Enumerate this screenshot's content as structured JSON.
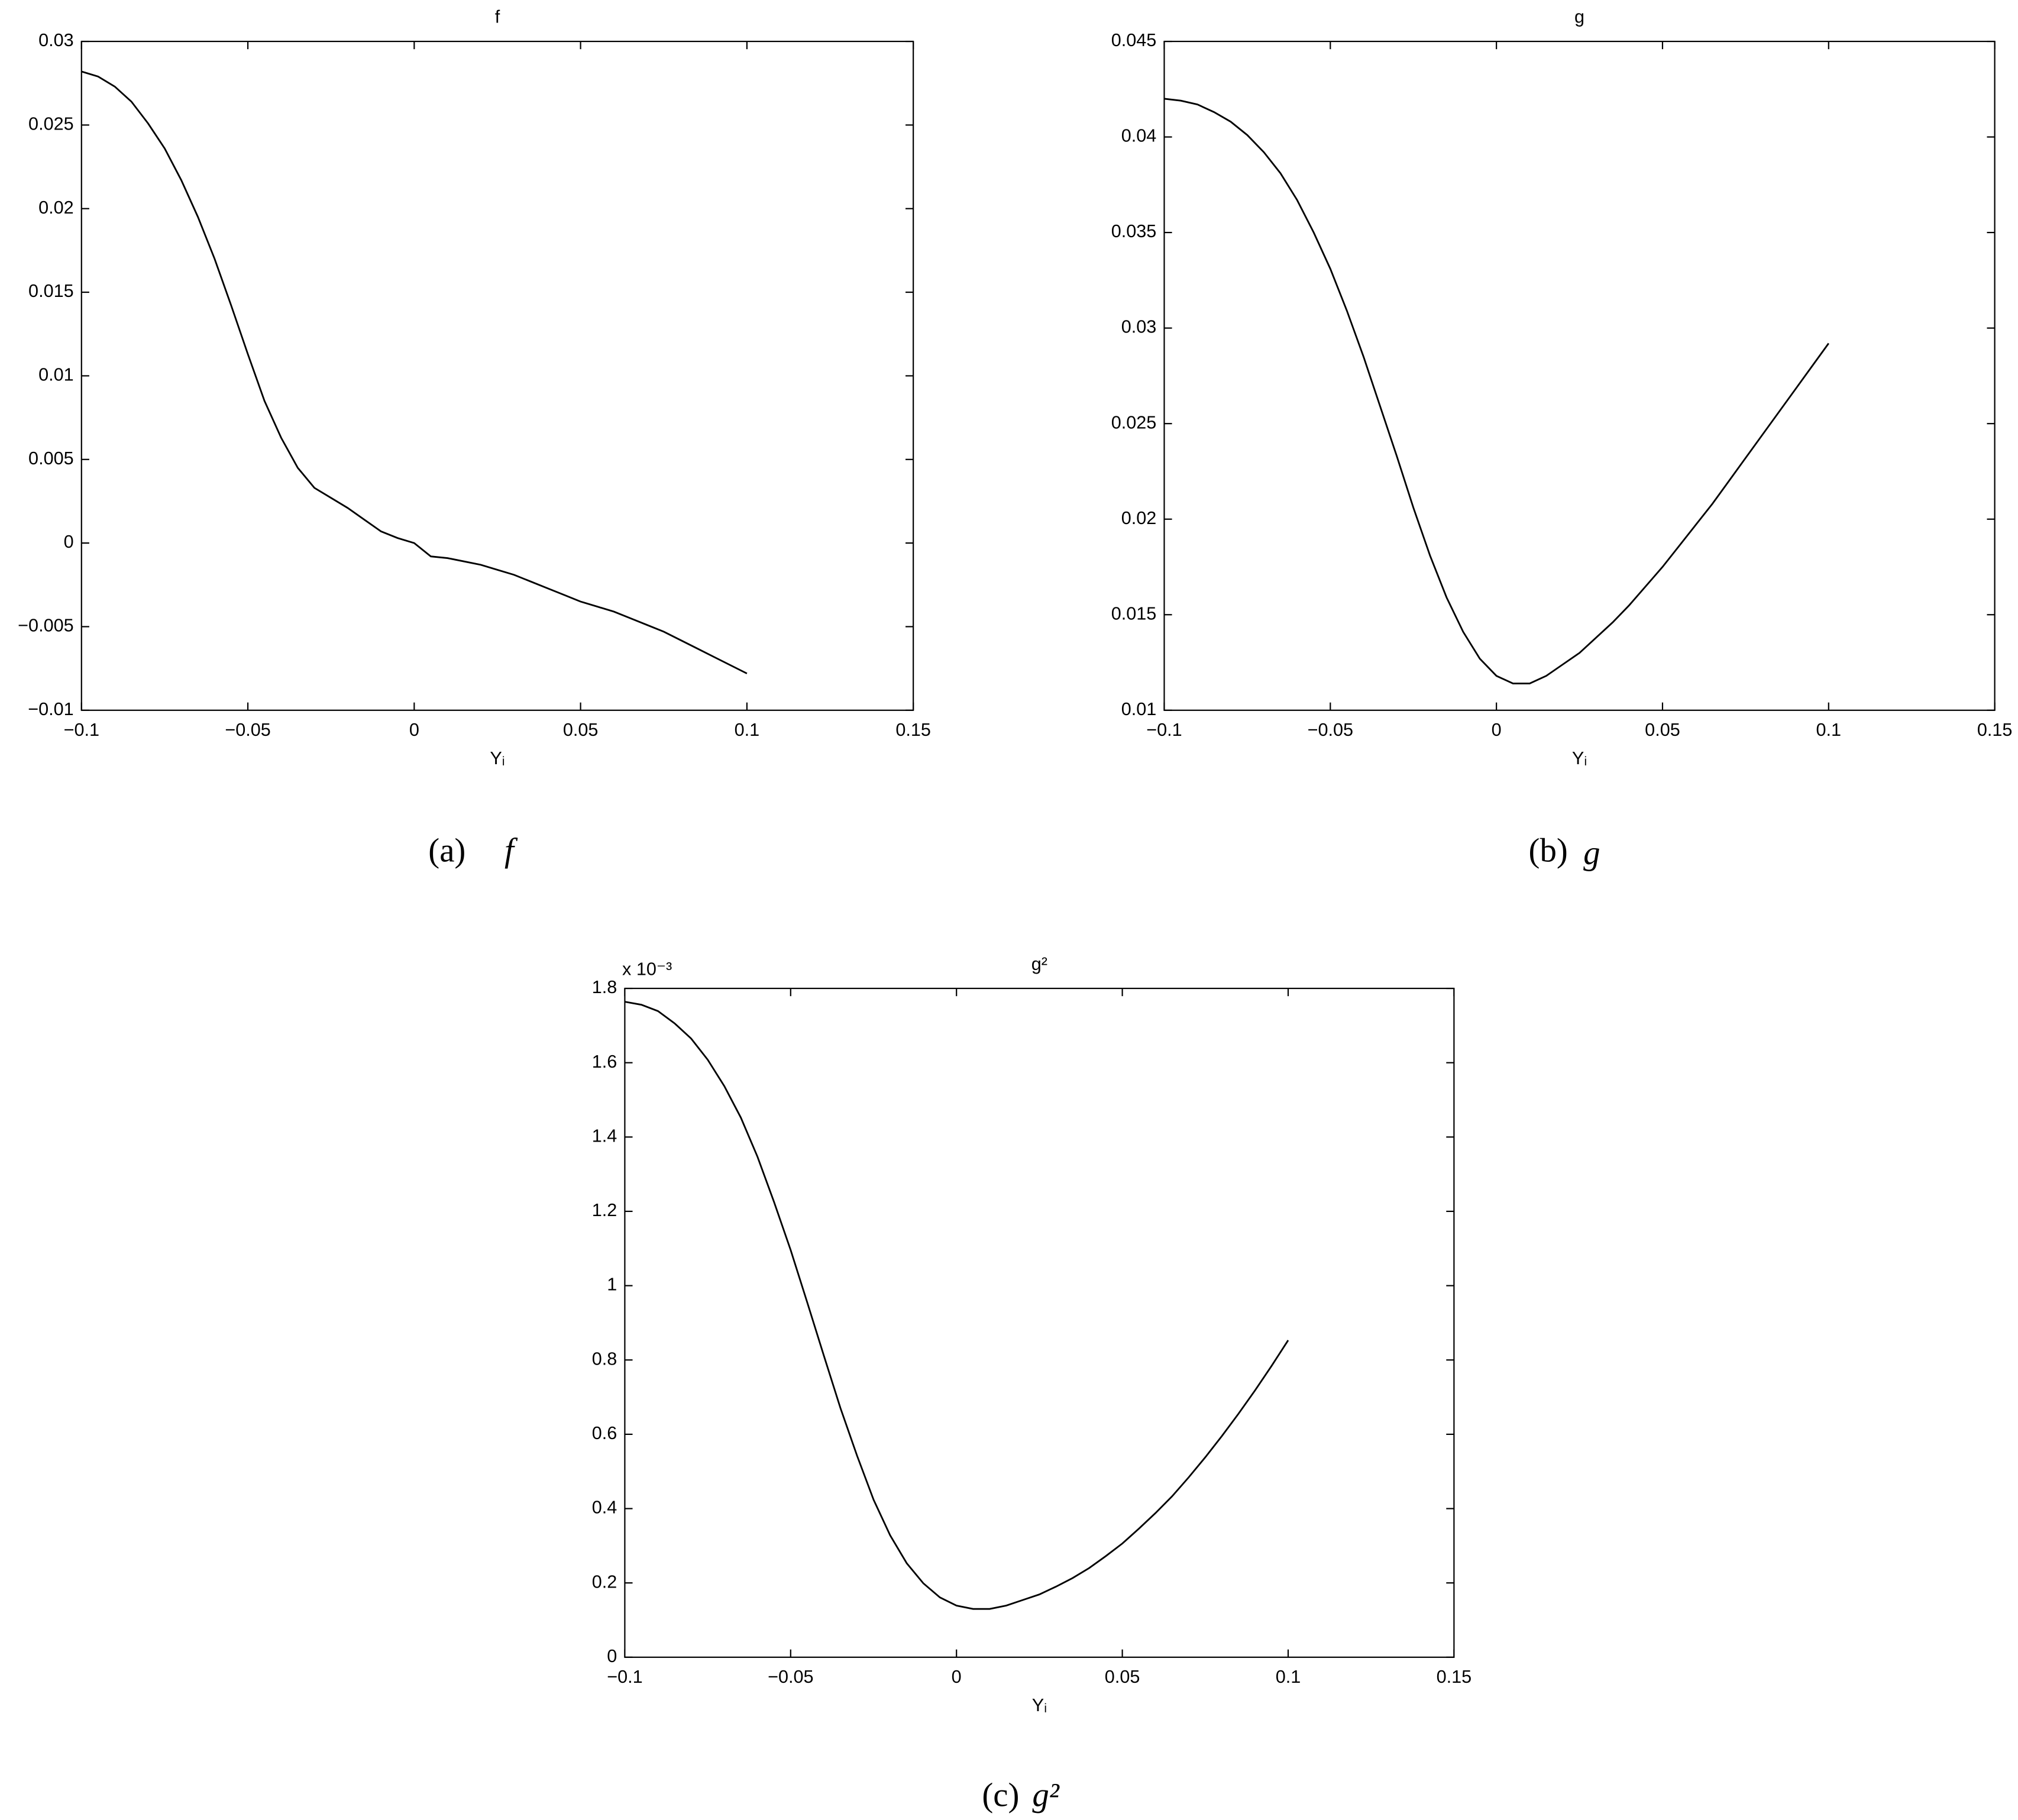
{
  "chart_data": [
    {
      "type": "line",
      "title": "f",
      "x_label": "Yᵢ",
      "caption": {
        "label": "(a)",
        "symbol": "f"
      },
      "color": "#000000",
      "x": [
        -0.1,
        -0.095,
        -0.09,
        -0.085,
        -0.08,
        -0.075,
        -0.07,
        -0.065,
        -0.06,
        -0.055,
        -0.05,
        -0.045,
        -0.04,
        -0.035,
        -0.03,
        -0.025,
        -0.02,
        -0.015,
        -0.01,
        -0.005,
        0,
        0.005,
        0.01,
        0.015,
        0.02,
        0.025,
        0.03,
        0.035,
        0.04,
        0.045,
        0.05,
        0.055,
        0.06,
        0.065,
        0.07,
        0.075,
        0.08,
        0.085,
        0.09,
        0.095,
        0.1
      ],
      "values": [
        0.0282,
        0.0279,
        0.0273,
        0.0264,
        0.0251,
        0.0236,
        0.0217,
        0.0195,
        0.017,
        0.0142,
        0.0113,
        0.0085,
        0.0063,
        0.0045,
        0.0033,
        0.0027,
        0.0021,
        0.0014,
        0.0007,
        0.0003,
        0,
        -0.0008,
        -0.0009,
        -0.0011,
        -0.0013,
        -0.0016,
        -0.0019,
        -0.0023,
        -0.0027,
        -0.0031,
        -0.0035,
        -0.0038,
        -0.0041,
        -0.0045,
        -0.0049,
        -0.0053,
        -0.0058,
        -0.0063,
        -0.0068,
        -0.0073,
        -0.0078
      ],
      "xlim": [
        -0.1,
        0.15
      ],
      "xticks": [
        {
          "value": -0.1,
          "label": "−0.1"
        },
        {
          "value": -0.05,
          "label": "−0.05"
        },
        0,
        0.05,
        0.1,
        0.15
      ],
      "ylim": [
        -0.01,
        0.03
      ],
      "yticks": [
        {
          "value": -0.01,
          "label": "−0.01"
        },
        {
          "value": -0.005,
          "label": "−0.005"
        },
        0,
        0.005,
        0.01,
        0.015,
        0.02,
        0.025,
        0.03
      ]
    },
    {
      "type": "line",
      "title": "g",
      "x_label": "Yᵢ",
      "caption": {
        "label": "(b)",
        "symbol": "g"
      },
      "color": "#000000",
      "x": [
        -0.1,
        -0.095,
        -0.09,
        -0.085,
        -0.08,
        -0.075,
        -0.07,
        -0.065,
        -0.06,
        -0.055,
        -0.05,
        -0.045,
        -0.04,
        -0.035,
        -0.03,
        -0.025,
        -0.02,
        -0.015,
        -0.01,
        -0.005,
        0,
        0.005,
        0.01,
        0.015,
        0.02,
        0.025,
        0.03,
        0.035,
        0.04,
        0.045,
        0.05,
        0.055,
        0.06,
        0.065,
        0.07,
        0.075,
        0.08,
        0.085,
        0.09,
        0.095,
        0.1
      ],
      "values": [
        0.042,
        0.0419,
        0.0417,
        0.0413,
        0.0408,
        0.0401,
        0.0392,
        0.0381,
        0.0367,
        0.035,
        0.0331,
        0.0309,
        0.0285,
        0.0259,
        0.0233,
        0.0206,
        0.0181,
        0.0159,
        0.0141,
        0.0127,
        0.0118,
        0.0114,
        0.0114,
        0.0118,
        0.0124,
        0.013,
        0.0138,
        0.0146,
        0.0155,
        0.0165,
        0.0175,
        0.0186,
        0.0197,
        0.0208,
        0.022,
        0.0232,
        0.0244,
        0.0256,
        0.0268,
        0.028,
        0.0292
      ],
      "xlim": [
        -0.1,
        0.15
      ],
      "xticks": [
        {
          "value": -0.1,
          "label": "−0.1"
        },
        {
          "value": -0.05,
          "label": "−0.05"
        },
        0,
        0.05,
        0.1,
        0.15
      ],
      "ylim": [
        0.01,
        0.045
      ],
      "yticks": [
        0.01,
        0.015,
        0.02,
        0.025,
        0.03,
        0.035,
        0.04,
        0.045
      ]
    },
    {
      "type": "line",
      "title": "g²",
      "x_label": "Yᵢ",
      "y_multiplier": "x 10⁻³",
      "caption": {
        "label": "(c)",
        "symbol": "g²"
      },
      "color": "#000000",
      "x": [
        -0.1,
        -0.095,
        -0.09,
        -0.085,
        -0.08,
        -0.075,
        -0.07,
        -0.065,
        -0.06,
        -0.055,
        -0.05,
        -0.045,
        -0.04,
        -0.035,
        -0.03,
        -0.025,
        -0.02,
        -0.015,
        -0.01,
        -0.005,
        0,
        0.005,
        0.01,
        0.015,
        0.02,
        0.025,
        0.03,
        0.035,
        0.04,
        0.045,
        0.05,
        0.055,
        0.06,
        0.065,
        0.07,
        0.075,
        0.08,
        0.085,
        0.09,
        0.095,
        0.1
      ],
      "values": [
        1.764,
        1.756,
        1.739,
        1.706,
        1.665,
        1.608,
        1.537,
        1.452,
        1.347,
        1.225,
        1.096,
        0.955,
        0.812,
        0.671,
        0.543,
        0.424,
        0.328,
        0.253,
        0.199,
        0.161,
        0.139,
        0.13,
        0.13,
        0.139,
        0.154,
        0.169,
        0.19,
        0.213,
        0.24,
        0.272,
        0.306,
        0.346,
        0.388,
        0.433,
        0.484,
        0.538,
        0.595,
        0.655,
        0.718,
        0.784,
        0.853
      ],
      "xlim": [
        -0.1,
        0.15
      ],
      "xticks": [
        {
          "value": -0.1,
          "label": "−0.1"
        },
        {
          "value": -0.05,
          "label": "−0.05"
        },
        0,
        0.05,
        0.1,
        0.15
      ],
      "ylim": [
        0,
        1.8
      ],
      "yticks": [
        0,
        0.2,
        0.4,
        0.6,
        0.8,
        1,
        1.2,
        1.4,
        1.6,
        1.8
      ]
    }
  ]
}
